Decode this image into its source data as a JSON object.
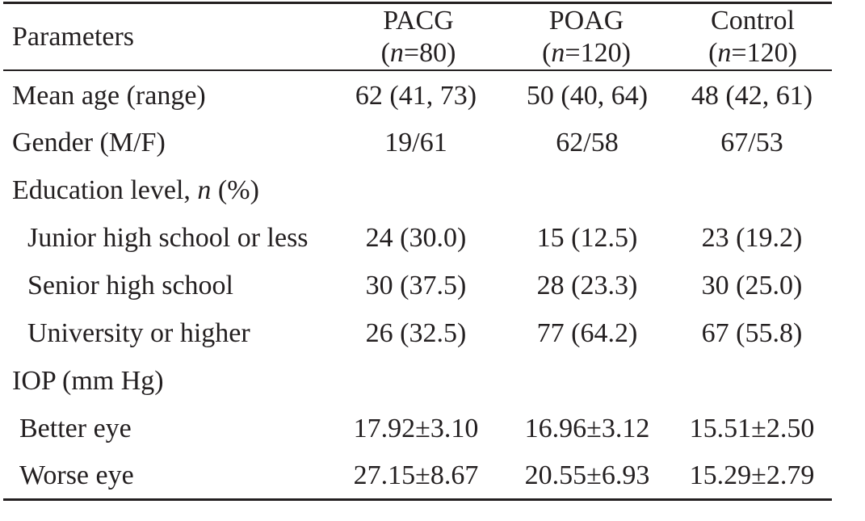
{
  "table": {
    "header": {
      "parameters": "Parameters",
      "columns": [
        {
          "name": "PACG",
          "n_prefix": "(",
          "n_var": "n",
          "n_rest": "=80)"
        },
        {
          "name": "POAG",
          "n_prefix": "(",
          "n_var": "n",
          "n_rest": "=120)"
        },
        {
          "name": "Control",
          "n_prefix": "(",
          "n_var": "n",
          "n_rest": "=120)"
        }
      ]
    },
    "rows": [
      {
        "label": "Mean age (range)",
        "values": [
          "62 (41, 73)",
          "50 (40, 64)",
          "48 (42, 61)"
        ]
      },
      {
        "label": "Gender (M/F)",
        "values": [
          "19/61",
          "62/58",
          "67/53"
        ]
      },
      {
        "label_pre": "Education level, ",
        "label_var": "n",
        "label_post": " (%)",
        "values": [
          "",
          "",
          ""
        ]
      },
      {
        "label": "Junior high school or less",
        "values": [
          "24 (30.0)",
          "15 (12.5)",
          "23 (19.2)"
        ]
      },
      {
        "label": "Senior high school",
        "values": [
          "30 (37.5)",
          "28 (23.3)",
          "30 (25.0)"
        ]
      },
      {
        "label": "University or higher",
        "values": [
          "26 (32.5)",
          "77 (64.2)",
          "67 (55.8)"
        ]
      },
      {
        "label": "IOP (mm Hg)",
        "values": [
          "",
          "",
          ""
        ]
      },
      {
        "label": "Better eye",
        "values": [
          "17.92±3.10",
          "16.96±3.12",
          "15.51±2.50"
        ]
      },
      {
        "label": "Worse eye",
        "values": [
          "27.15±8.67",
          "20.55±6.93",
          "15.29±2.79"
        ]
      }
    ]
  }
}
